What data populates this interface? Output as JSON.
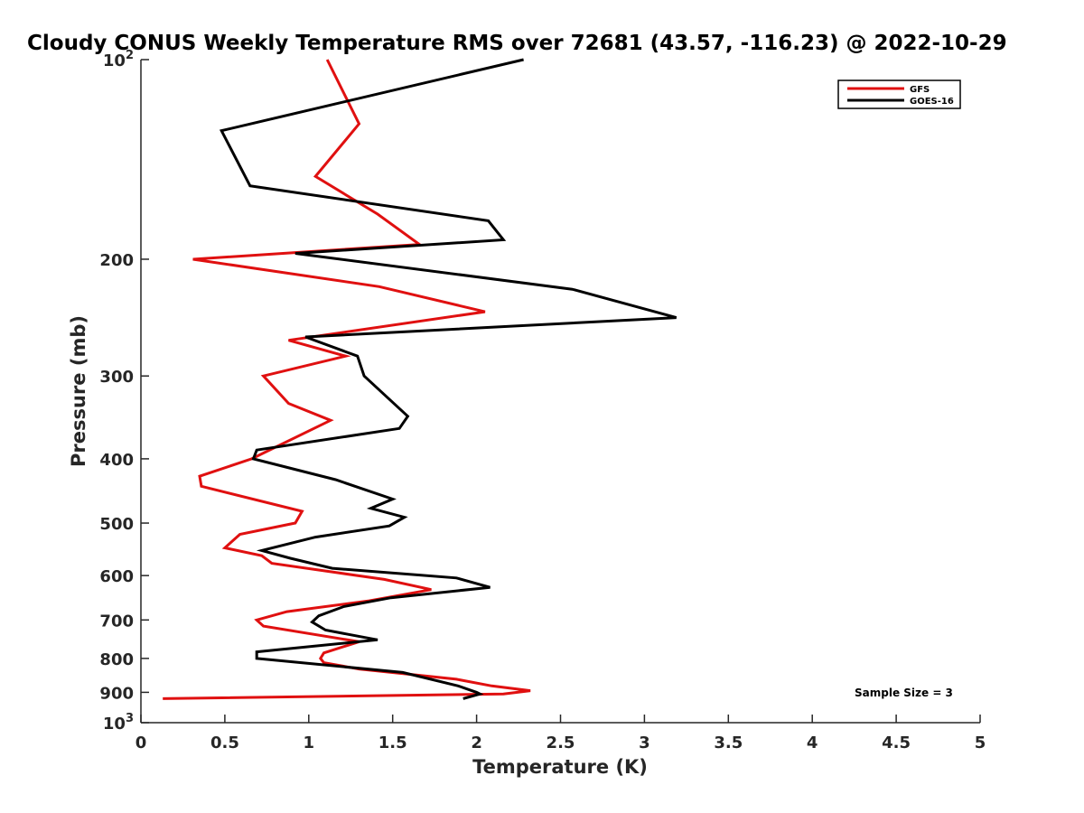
{
  "chart_data": {
    "type": "line",
    "title": "Cloudy CONUS Weekly Temperature RMS over 72681 (43.57, -116.23) @ 2022-10-29",
    "xlabel": "Temperature (K)",
    "ylabel": "Pressure (mb)",
    "xlim": [
      0,
      5
    ],
    "ylim": [
      100,
      1000
    ],
    "yscale": "log",
    "y_reversed": true,
    "grid": false,
    "legend_position": "top-right",
    "xticks": [
      0,
      0.5,
      1,
      1.5,
      2,
      2.5,
      3,
      3.5,
      4,
      4.5,
      5
    ],
    "xtick_labels": [
      "0",
      "0.5",
      "1",
      "1.5",
      "2",
      "2.5",
      "3",
      "3.5",
      "4",
      "4.5",
      "5"
    ],
    "yticks": [
      {
        "value": 100,
        "base": "10",
        "exp": "2"
      },
      {
        "value": 200,
        "label": "200"
      },
      {
        "value": 300,
        "label": "300"
      },
      {
        "value": 400,
        "label": "400"
      },
      {
        "value": 500,
        "label": "500"
      },
      {
        "value": 600,
        "label": "600"
      },
      {
        "value": 700,
        "label": "700"
      },
      {
        "value": 800,
        "label": "800"
      },
      {
        "value": 900,
        "label": "900"
      },
      {
        "value": 1000,
        "base": "10",
        "exp": "3"
      }
    ],
    "series": [
      {
        "name": "GFS",
        "color": "#e01010",
        "points": [
          [
            1.11,
            100
          ],
          [
            1.3,
            125
          ],
          [
            1.04,
            150
          ],
          [
            1.41,
            171
          ],
          [
            1.66,
            190
          ],
          [
            0.31,
            200
          ],
          [
            1.42,
            220
          ],
          [
            2.05,
            240
          ],
          [
            0.88,
            265
          ],
          [
            1.22,
            280
          ],
          [
            0.73,
            300
          ],
          [
            0.88,
            330
          ],
          [
            1.13,
            350
          ],
          [
            0.66,
            400
          ],
          [
            0.35,
            425
          ],
          [
            0.36,
            440
          ],
          [
            0.96,
            480
          ],
          [
            0.92,
            500
          ],
          [
            0.59,
            520
          ],
          [
            0.5,
            545
          ],
          [
            0.72,
            560
          ],
          [
            0.78,
            575
          ],
          [
            1.45,
            608
          ],
          [
            1.73,
            630
          ],
          [
            1.36,
            655
          ],
          [
            0.87,
            680
          ],
          [
            0.69,
            700
          ],
          [
            0.73,
            715
          ],
          [
            1.3,
            755
          ],
          [
            1.09,
            785
          ],
          [
            1.07,
            800
          ],
          [
            1.09,
            812
          ],
          [
            1.3,
            830
          ],
          [
            1.88,
            860
          ],
          [
            2.09,
            880
          ],
          [
            2.32,
            895
          ],
          [
            2.16,
            905
          ],
          [
            0.13,
            920
          ]
        ]
      },
      {
        "name": "GOES-16",
        "color": "#000000",
        "points": [
          [
            2.28,
            100
          ],
          [
            0.48,
            128
          ],
          [
            0.65,
            155
          ],
          [
            2.07,
            175
          ],
          [
            2.16,
            187
          ],
          [
            0.92,
            196
          ],
          [
            2.57,
            222
          ],
          [
            3.19,
            245
          ],
          [
            0.98,
            262
          ],
          [
            1.29,
            280
          ],
          [
            1.33,
            300
          ],
          [
            1.45,
            320
          ],
          [
            1.59,
            345
          ],
          [
            1.54,
            360
          ],
          [
            0.69,
            388
          ],
          [
            0.67,
            400
          ],
          [
            1.16,
            430
          ],
          [
            1.5,
            460
          ],
          [
            1.37,
            475
          ],
          [
            1.57,
            490
          ],
          [
            1.48,
            505
          ],
          [
            1.04,
            525
          ],
          [
            0.72,
            550
          ],
          [
            0.89,
            565
          ],
          [
            1.14,
            585
          ],
          [
            1.88,
            605
          ],
          [
            2.08,
            625
          ],
          [
            1.49,
            648
          ],
          [
            1.21,
            668
          ],
          [
            1.06,
            690
          ],
          [
            1.02,
            705
          ],
          [
            1.1,
            725
          ],
          [
            1.41,
            750
          ],
          [
            0.69,
            782
          ],
          [
            0.69,
            800
          ],
          [
            1.56,
            840
          ],
          [
            1.89,
            880
          ],
          [
            2.0,
            900
          ],
          [
            2.02,
            905
          ],
          [
            1.92,
            920
          ]
        ]
      }
    ],
    "annotations": [
      {
        "text": "Sample Size = 3",
        "position": "bottom-right"
      }
    ]
  }
}
